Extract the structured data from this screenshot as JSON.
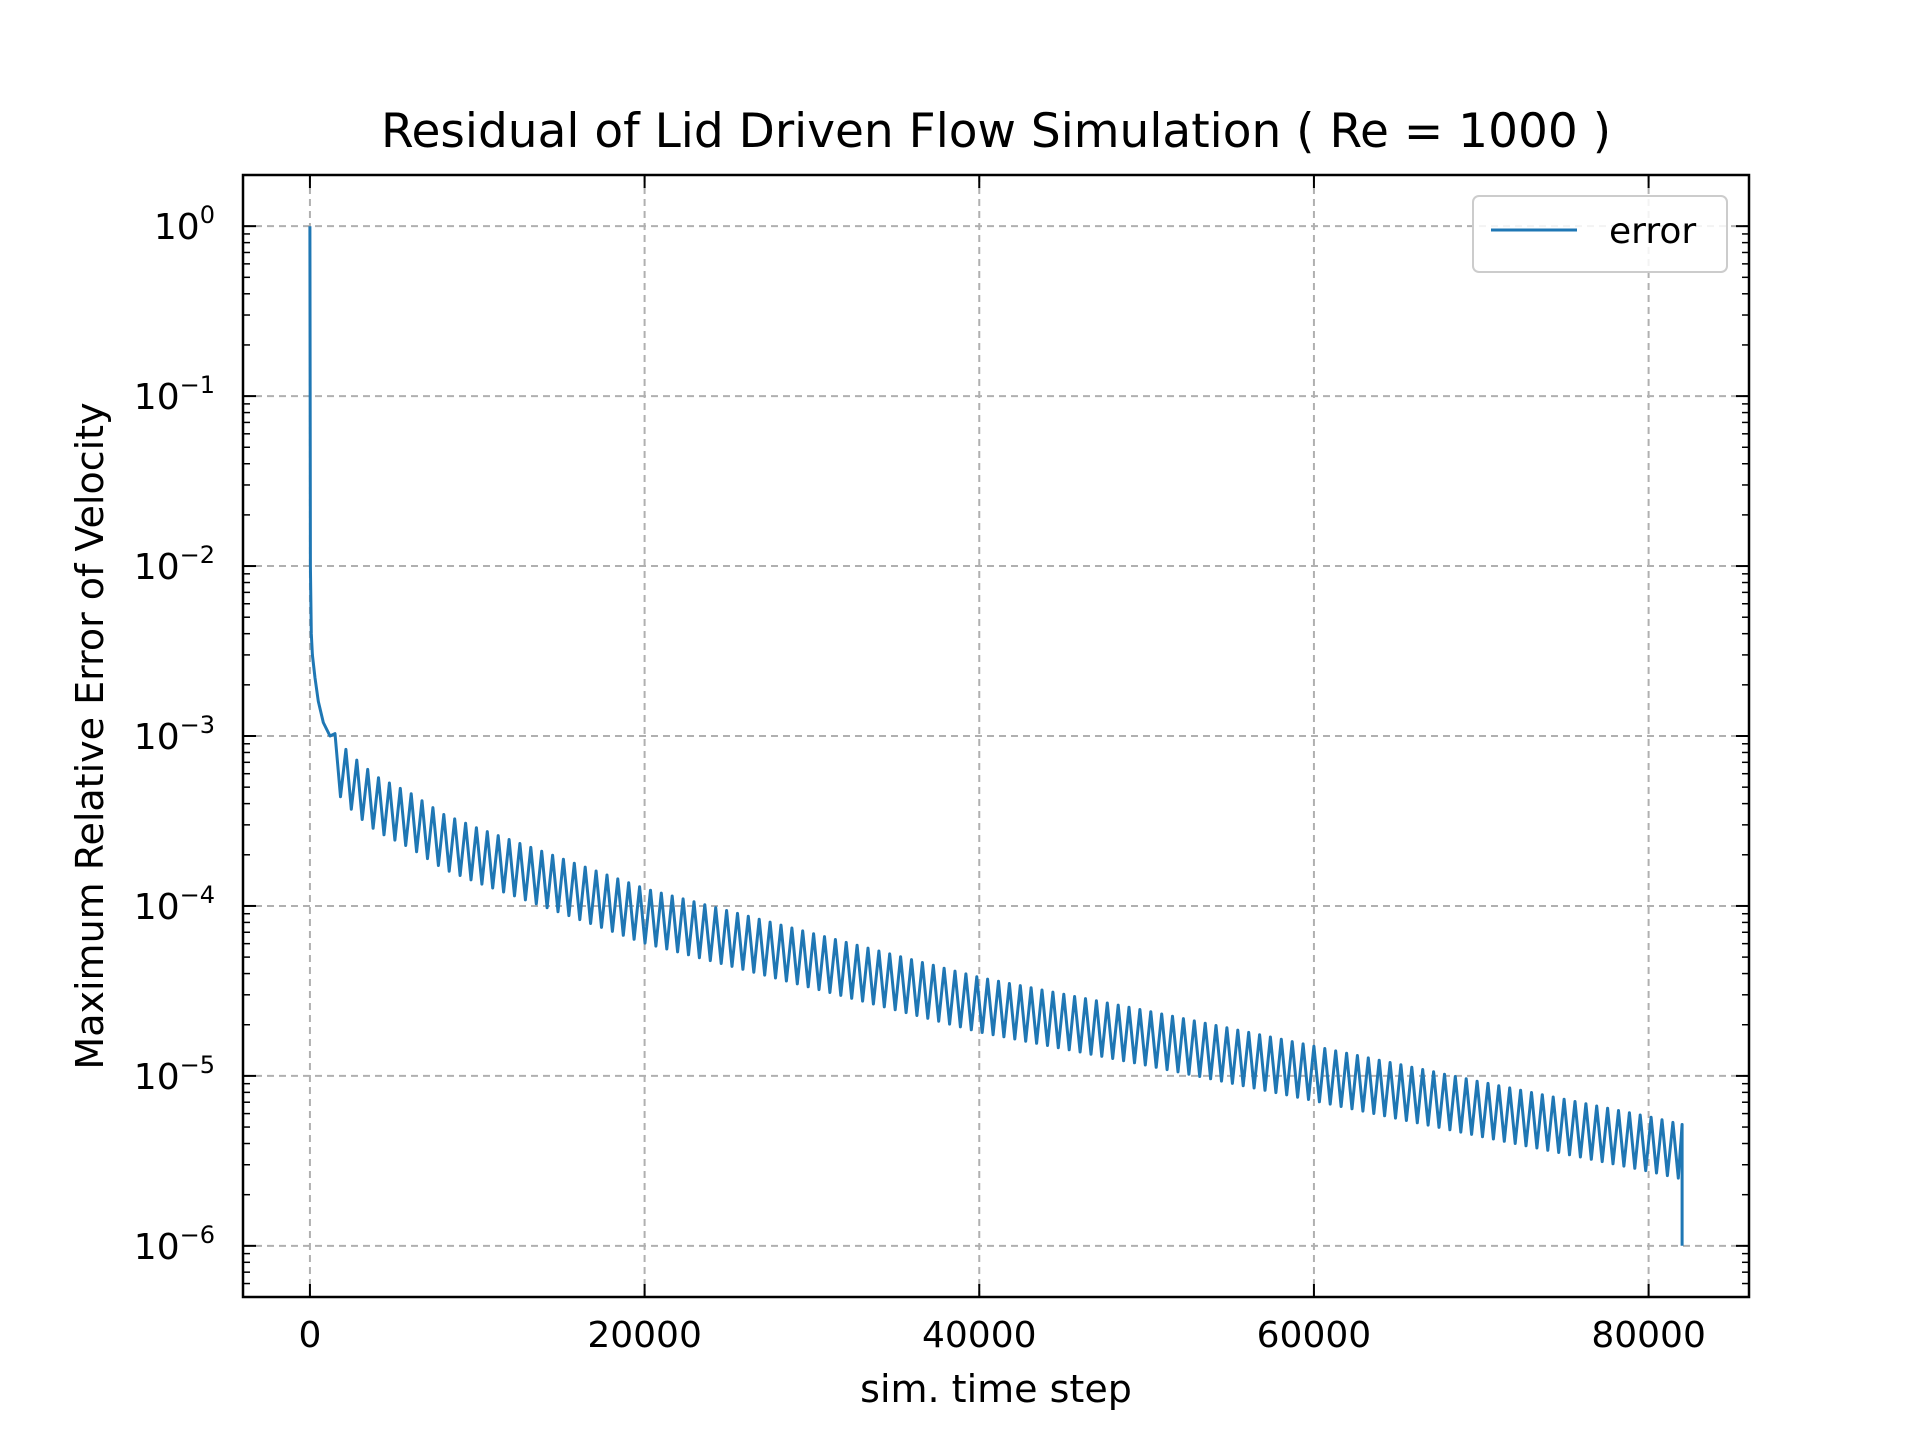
{
  "chart_data": {
    "type": "line",
    "title": "Residual of Lid Driven Flow Simulation ( Re = 1000 )",
    "xlabel": "sim. time step",
    "ylabel": "Maximum Relative Error of Velocity",
    "xlim": [
      -4000,
      86000
    ],
    "ylim": [
      5e-07,
      2
    ],
    "yscale": "log",
    "grid": true,
    "legend_position": "top-right",
    "x_ticks": [
      0,
      20000,
      40000,
      60000,
      80000
    ],
    "x_tick_labels": [
      "0",
      "20000",
      "40000",
      "60000",
      "80000"
    ],
    "y_ticks": [
      {
        "value": 1,
        "base": "10",
        "exp": "0"
      },
      {
        "value": 0.1,
        "base": "10",
        "exp": "−1"
      },
      {
        "value": 0.01,
        "base": "10",
        "exp": "−2"
      },
      {
        "value": 0.001,
        "base": "10",
        "exp": "−3"
      },
      {
        "value": 0.0001,
        "base": "10",
        "exp": "−4"
      },
      {
        "value": 1e-05,
        "base": "10",
        "exp": "−5"
      },
      {
        "value": 1e-06,
        "base": "10",
        "exp": "−6"
      }
    ],
    "series": [
      {
        "name": "error",
        "color": "#1f77b4",
        "x": [
          0,
          30,
          80,
          150,
          300,
          500,
          800,
          1200,
          2000,
          3000,
          4000,
          6000,
          8000,
          10000,
          14000,
          20000,
          30000,
          40000,
          50000,
          60000,
          70000,
          80000,
          82000
        ],
        "y": [
          1.0,
          0.01,
          0.004,
          0.003,
          0.0022,
          0.0016,
          0.0012,
          0.001,
          0.00075,
          0.0006,
          0.0005,
          0.0004,
          0.0003,
          0.00025,
          0.00018,
          0.00011,
          6e-05,
          3.3e-05,
          2.1e-05,
          1.3e-05,
          8e-06,
          5e-06,
          4.5e-06
        ],
        "oscillation": {
          "start_x": 1500,
          "period": 650,
          "upper_factor": 1.15,
          "lower_factor": 0.55,
          "final_x": 82000,
          "final_y": 1e-06
        }
      }
    ]
  }
}
